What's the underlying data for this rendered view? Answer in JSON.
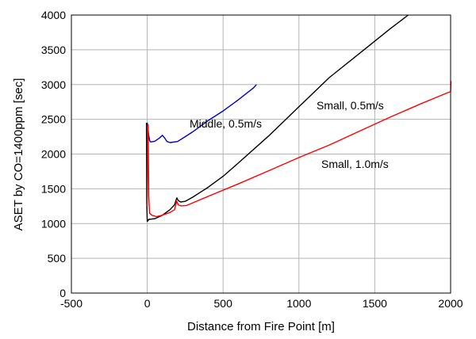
{
  "chart_data": {
    "type": "line",
    "xlabel": "Distance from Fire Point [m]",
    "ylabel": "ASET by CO=1400ppm [sec]",
    "xlim": [
      -500,
      2000
    ],
    "ylim": [
      0,
      4000
    ],
    "x_ticks": [
      "-500",
      "0",
      "500",
      "1000",
      "1500",
      "2000"
    ],
    "y_ticks": [
      "0",
      "500",
      "1000",
      "1500",
      "2000",
      "2500",
      "3000",
      "3500",
      "4000"
    ],
    "grid": true,
    "annotations": [
      {
        "text": "Middle, 0.5m/s",
        "series": "Middle, 0.5m/s"
      },
      {
        "text": "Small, 0.5m/s",
        "series": "Small, 0.5m/s"
      },
      {
        "text": "Small, 1.0m/s",
        "series": "Small, 1.0m/s"
      }
    ],
    "series": [
      {
        "name": "Middle, 0.5m/s",
        "color": "#0000cc",
        "x": [
          0,
          5,
          10,
          15,
          20,
          30,
          50,
          80,
          100,
          115,
          130,
          150,
          200,
          250,
          300,
          400,
          500,
          600,
          700,
          720
        ],
        "y": [
          2450,
          2350,
          2270,
          2200,
          2175,
          2175,
          2185,
          2230,
          2270,
          2230,
          2180,
          2165,
          2180,
          2250,
          2320,
          2480,
          2620,
          2780,
          2950,
          3000
        ]
      },
      {
        "name": "Small, 0.5m/s",
        "color": "#000000",
        "x": [
          -5,
          -3,
          0,
          3,
          5,
          10,
          50,
          100,
          150,
          180,
          195,
          205,
          220,
          250,
          300,
          400,
          500,
          600,
          800,
          1000,
          1200,
          1400,
          1600,
          1720
        ],
        "y": [
          2450,
          1300,
          1030,
          1050,
          1040,
          1060,
          1070,
          1120,
          1200,
          1270,
          1370,
          1330,
          1310,
          1320,
          1380,
          1520,
          1680,
          1870,
          2260,
          2680,
          3100,
          3450,
          3800,
          4000
        ]
      },
      {
        "name": "Small, 1.0m/s",
        "color": "#ff0000",
        "x": [
          0,
          3,
          6,
          10,
          15,
          30,
          60,
          100,
          150,
          180,
          195,
          205,
          220,
          260,
          400,
          600,
          800,
          1000,
          1200,
          1400,
          1600,
          1800,
          2000,
          2002
        ],
        "y": [
          1250,
          2400,
          2420,
          1400,
          1150,
          1120,
          1100,
          1120,
          1160,
          1200,
          1320,
          1270,
          1255,
          1260,
          1390,
          1570,
          1760,
          1950,
          2130,
          2330,
          2530,
          2720,
          2900,
          3050
        ]
      }
    ]
  }
}
